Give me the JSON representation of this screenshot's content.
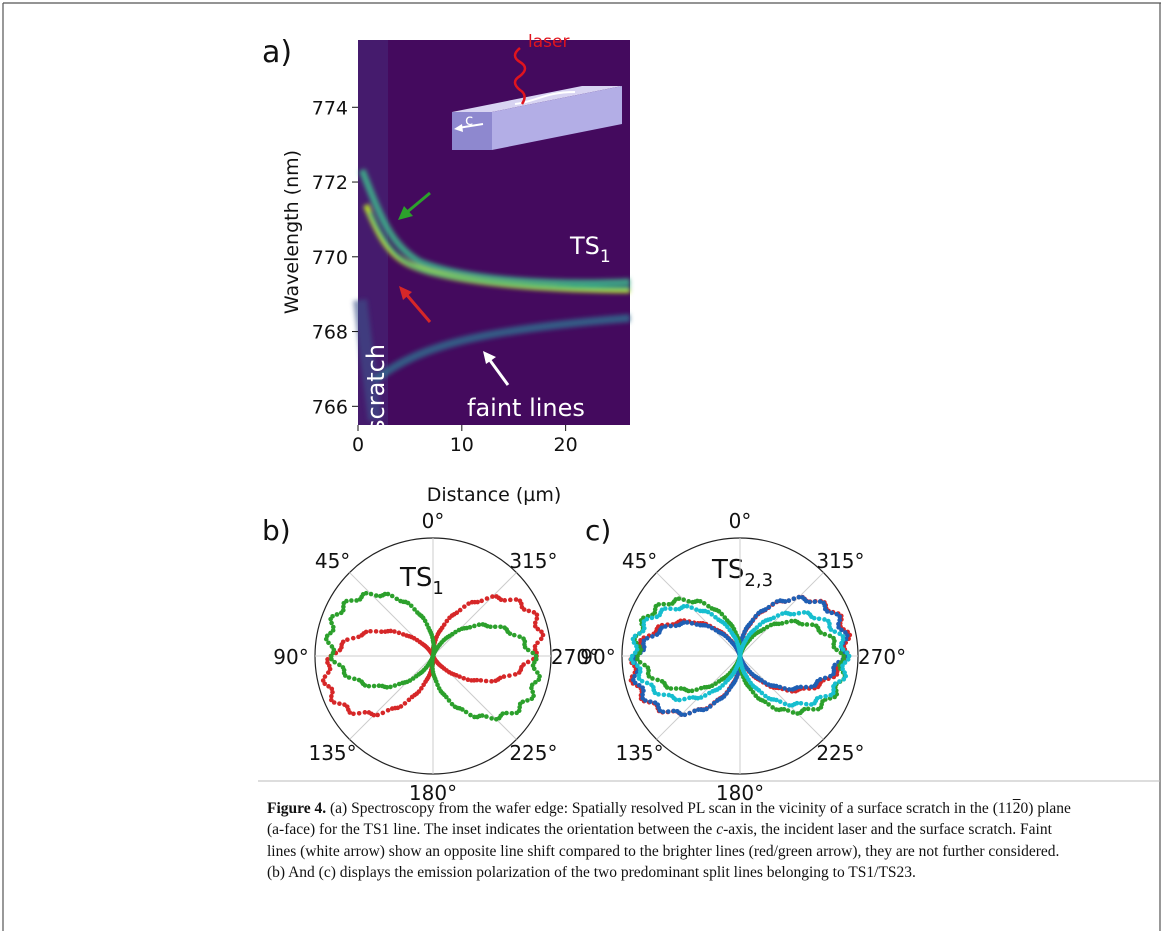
{
  "figure": {
    "panel_a": {
      "label": "a)",
      "y_label": "Wavelength (nm)",
      "x_label": "Distance (µm)",
      "ylim": [
        765.5,
        775.8
      ],
      "yticks": [
        766,
        768,
        770,
        772,
        774
      ],
      "xlim": [
        0,
        26.2
      ],
      "xticks": [
        0,
        10,
        20
      ],
      "inset_labels": {
        "laser": "laser",
        "axis": "c"
      },
      "annotations": {
        "line": {
          "main": "TS",
          "sub": "1"
        },
        "scratch": "scratch",
        "faint": "faint lines"
      }
    },
    "panel_b": {
      "label": "b)",
      "title": {
        "main": "TS",
        "sub": "1"
      },
      "angle_ticks": [
        {
          "value": 0,
          "label": "0°"
        },
        {
          "value": 45,
          "label": "45°"
        },
        {
          "value": 90,
          "label": "90°"
        },
        {
          "value": 135,
          "label": "135°"
        },
        {
          "value": 180,
          "label": "180°"
        },
        {
          "value": 225,
          "label": "225°"
        },
        {
          "value": 270,
          "label": "270°"
        },
        {
          "value": 315,
          "label": "315°"
        }
      ]
    },
    "panel_c": {
      "label": "c)",
      "title": {
        "main": "TS",
        "sub": "2,3"
      },
      "angle_ticks": [
        {
          "value": 0,
          "label": "0°"
        },
        {
          "value": 45,
          "label": "45°"
        },
        {
          "value": 90,
          "label": "90°"
        },
        {
          "value": 135,
          "label": "135°"
        },
        {
          "value": 180,
          "label": "180°"
        },
        {
          "value": 225,
          "label": "225°"
        },
        {
          "value": 270,
          "label": "270°"
        },
        {
          "value": 315,
          "label": "315°"
        }
      ]
    }
  },
  "caption": {
    "label": "Figure 4.",
    "segments": [
      " (a) Spectroscopy from the wafer edge: Spatially resolved PL scan in the vicinity of a surface scratch in the ",
      "(11",
      "2",
      "0)",
      " plane",
      "(a-face) for the TS1 line. The inset indicates the orientation between the ",
      "c",
      "-axis, the incident laser and the surface scratch. Faint",
      "lines (white arrow) show an opposite line shift compared to the brighter lines (red/green arrow), they are not further considered.",
      "(b) And (c) displays the emission polarization of the two predominant split lines belonging to TS1/TS23."
    ]
  }
}
